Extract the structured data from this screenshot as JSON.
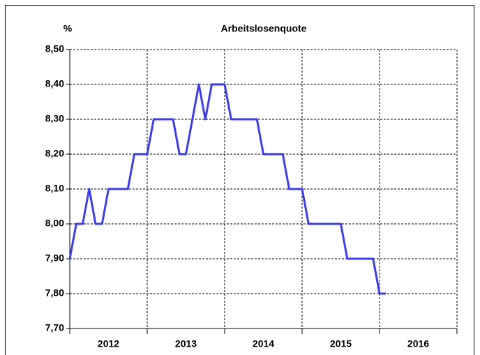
{
  "chart_data": {
    "type": "line",
    "title": "Arbeitslosenquote",
    "y_label": "%",
    "x_axis_labels": [
      "2012",
      "2013",
      "2014",
      "2015",
      "2016"
    ],
    "values": [
      7.9,
      8.0,
      8.0,
      8.1,
      8.0,
      8.0,
      8.1,
      8.1,
      8.1,
      8.1,
      8.2,
      8.2,
      8.2,
      8.3,
      8.3,
      8.3,
      8.3,
      8.2,
      8.2,
      8.3,
      8.4,
      8.3,
      8.4,
      8.4,
      8.4,
      8.3,
      8.3,
      8.3,
      8.3,
      8.3,
      8.2,
      8.2,
      8.2,
      8.2,
      8.1,
      8.1,
      8.1,
      8.0,
      8.0,
      8.0,
      8.0,
      8.0,
      8.0,
      7.9,
      7.9,
      7.9,
      7.9,
      7.9,
      7.8,
      7.8
    ],
    "color": "#3c3cf0",
    "ylim": [
      7.7,
      8.5
    ],
    "yticks": [
      {
        "value": 7.7,
        "label": "7,70"
      },
      {
        "value": 7.8,
        "label": "7,80"
      },
      {
        "value": 7.9,
        "label": "7,90"
      },
      {
        "value": 8.0,
        "label": "8,00"
      },
      {
        "value": 8.1,
        "label": "8,10"
      },
      {
        "value": 8.2,
        "label": "8,20"
      },
      {
        "value": 8.3,
        "label": "8,30"
      },
      {
        "value": 8.4,
        "label": "8,40"
      },
      {
        "value": 8.5,
        "label": "8,50"
      }
    ],
    "grid": true
  }
}
